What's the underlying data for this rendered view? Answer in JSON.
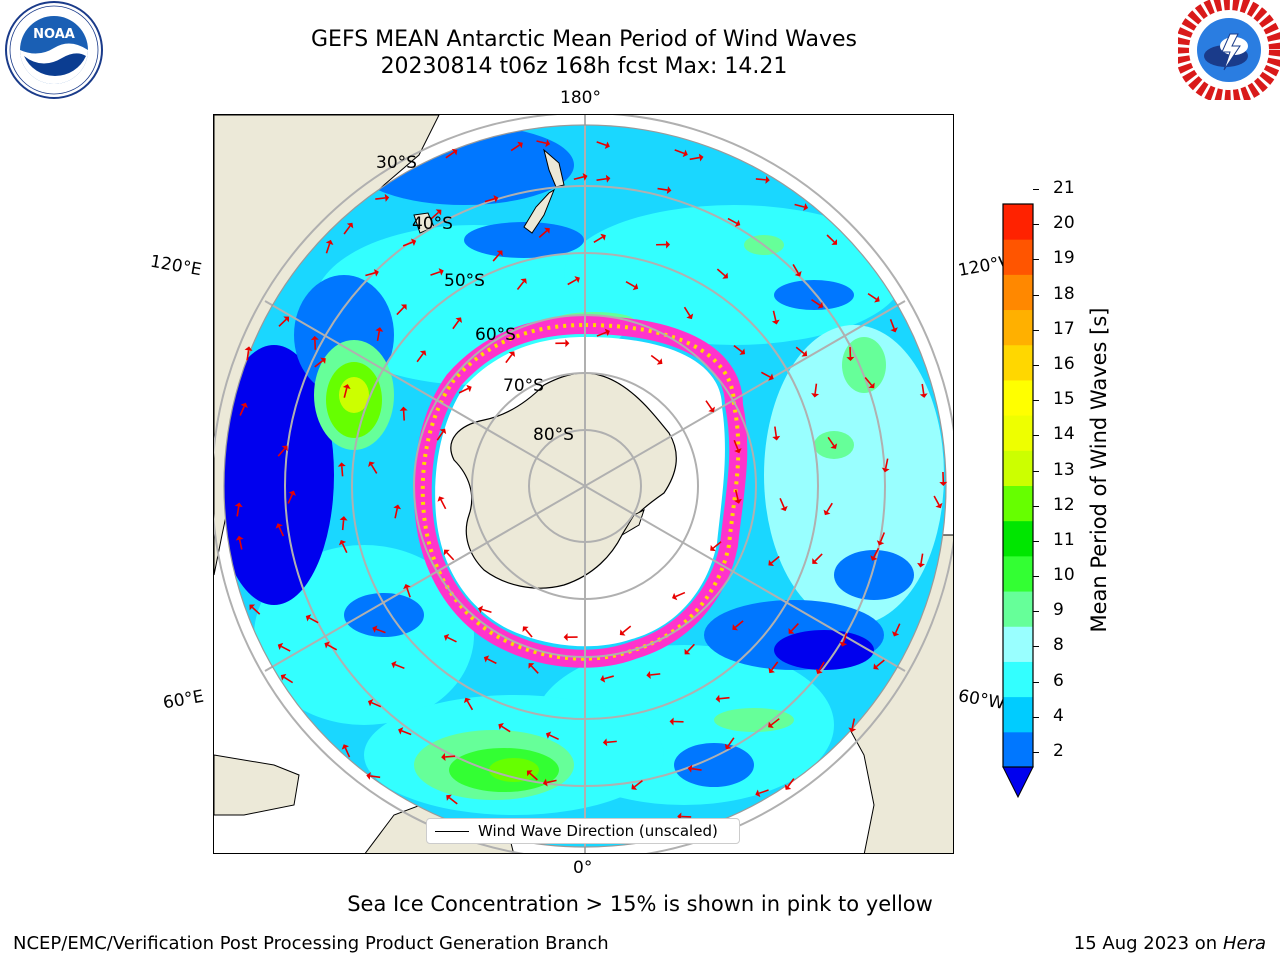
{
  "header": {
    "title_line1": "GEFS MEAN Antarctic Mean Period of Wind Waves",
    "title_line2": "20230814 t06z 168h fcst   Max: 14.21"
  },
  "logos": {
    "left": {
      "name": "NOAA",
      "ring_text": "NATIONAL OCEANIC AND ATMOSPHERIC ADMINISTRATION · U.S. DEPARTMENT OF COMMERCE"
    },
    "right": {
      "name": "NATIONAL WEATHER SERVICE"
    }
  },
  "map": {
    "projection": "south-polar-stereographic",
    "longitude_labels": {
      "top": "180°",
      "upper_left": "120°E",
      "upper_right": "120°W",
      "lower_left": "60°E",
      "lower_right": "60°W",
      "bottom": "0°"
    },
    "latitude_labels": [
      "30°S",
      "40°S",
      "50°S",
      "60°S",
      "70°S",
      "80°S"
    ],
    "legend_label": "Wind Wave Direction (unscaled)",
    "colors": {
      "land": "#ece9d8",
      "ocean_base": "#33ffff",
      "sea_ice": "#ff33cc",
      "grid": "#b0b0b0",
      "arrow": "#e80000"
    }
  },
  "colorbar": {
    "label": "Mean Period of Wind Waves [s]",
    "ticks": [
      "2",
      "4",
      "6",
      "8",
      "9",
      "10",
      "11",
      "12",
      "13",
      "14",
      "15",
      "16",
      "17",
      "18",
      "19",
      "20",
      "21"
    ],
    "colors": [
      "#0077ff",
      "#00ccff",
      "#33ffff",
      "#99ffff",
      "#66ff99",
      "#33ff33",
      "#00e600",
      "#66ff00",
      "#ccff00",
      "#eeff00",
      "#ffff00",
      "#ffd700",
      "#ffb000",
      "#ff8800",
      "#ff5500",
      "#ff2200",
      "#ff0000"
    ],
    "extend_min_color": "#0000ee"
  },
  "footer": {
    "note": "Sea Ice Concentration > 15% is shown in pink to yellow",
    "left": "NCEP/EMC/Verification Post Processing Product Generation Branch",
    "right_date": "15 Aug 2023 on",
    "right_machine": "Hera"
  }
}
